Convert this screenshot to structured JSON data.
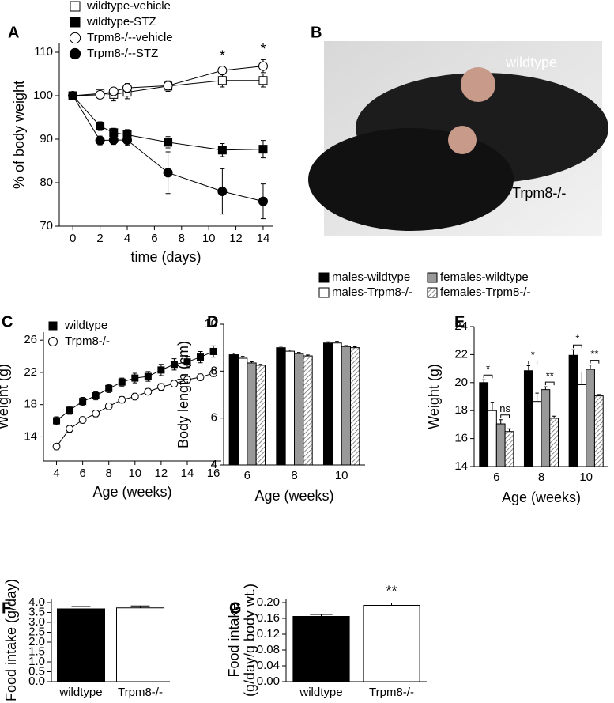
{
  "chart_data": [
    {
      "type": "line",
      "panel": "A",
      "xlabel": "time (days)",
      "ylabel": "% of body weight",
      "x": [
        0,
        2,
        3,
        4,
        7,
        11,
        14
      ],
      "xlim": [
        -1,
        14.7
      ],
      "xticks": [
        0,
        2,
        4,
        6,
        8,
        10,
        12,
        14
      ],
      "ylim": [
        70,
        112
      ],
      "yticks": [
        70,
        80,
        90,
        100,
        110
      ],
      "legend": "top-left",
      "series": [
        {
          "name": "wildtype-vehicle",
          "color": "#000000",
          "marker": "square",
          "filled": false,
          "values": [
            100,
            100.5,
            100.3,
            100.8,
            102.2,
            103.5,
            103.5
          ],
          "errors": [
            0.5,
            1,
            1.5,
            1.5,
            1.2,
            1.5,
            1.5
          ]
        },
        {
          "name": "wildtype-STZ",
          "color": "#000000",
          "marker": "square",
          "filled": true,
          "values": [
            100,
            93,
            91.5,
            91,
            89.3,
            87.5,
            87.7
          ],
          "errors": [
            0.5,
            1,
            1,
            1.2,
            1.3,
            1.5,
            2
          ]
        },
        {
          "name": "Trpm8-/--vehicle",
          "color": "#000000",
          "marker": "circle",
          "filled": false,
          "values": [
            100,
            100.2,
            101,
            101.8,
            102.3,
            105.8,
            106.8
          ],
          "errors": [
            0.5,
            0.8,
            0.8,
            1,
            1,
            1,
            1.5
          ]
        },
        {
          "name": "Trpm8-/--STZ",
          "color": "#000000",
          "marker": "circle",
          "filled": true,
          "values": [
            100,
            89.7,
            89.8,
            89.8,
            82.3,
            78,
            75.7
          ],
          "errors": [
            0.5,
            1,
            1,
            1.2,
            4.8,
            5.2,
            4
          ]
        }
      ],
      "annotations": [
        null,
        null,
        null,
        null,
        null,
        "*",
        "*"
      ]
    },
    {
      "type": "image",
      "panel": "B",
      "labels": [
        "wildtype",
        "Trpm8-/-"
      ]
    },
    {
      "type": "line",
      "panel": "C",
      "xlabel": "Age (weeks)",
      "ylabel": "Weight (g)",
      "x": [
        4,
        5,
        6,
        7,
        8,
        9,
        10,
        11,
        12,
        13,
        14,
        15,
        16
      ],
      "xlim": [
        3,
        16.6
      ],
      "xticks": [
        4,
        6,
        8,
        10,
        12,
        14,
        16
      ],
      "ylim": [
        11,
        27
      ],
      "yticks": [
        14,
        18,
        22,
        26
      ],
      "legend": "top-left",
      "series": [
        {
          "name": "wildtype",
          "color": "#000000",
          "marker": "square",
          "filled": true,
          "values": [
            16,
            17.3,
            18.4,
            19.1,
            20,
            20.8,
            21.3,
            21.5,
            22.3,
            23,
            23.3,
            23.9,
            24.6
          ],
          "errors": [
            0.5,
            0.5,
            0.5,
            0.5,
            0.5,
            0.5,
            0.6,
            0.6,
            0.7,
            0.7,
            0.7,
            0.7,
            0.7
          ]
        },
        {
          "name": "Trpm8-/-",
          "color": "#000000",
          "marker": "circle",
          "filled": false,
          "values": [
            12.8,
            15,
            16.1,
            16.9,
            17.8,
            18.6,
            19,
            19.6,
            20.2,
            20.6,
            21.1,
            21.4,
            21.9
          ],
          "errors": [
            0.4,
            0.4,
            0.4,
            0.4,
            0.4,
            0.4,
            0.4,
            0.4,
            0.4,
            0.4,
            0.4,
            0.4,
            0.4
          ]
        }
      ]
    },
    {
      "type": "bar",
      "panel": "D",
      "xlabel": "Age (weeks)",
      "ylabel": "Body length (cm)",
      "categories": [
        "6",
        "8",
        "10"
      ],
      "ylim": [
        4,
        10
      ],
      "yticks": [
        4,
        6,
        8,
        10
      ],
      "legend": "top",
      "series": [
        {
          "name": "males-wildtype",
          "color": "#000000",
          "values": [
            8.7,
            9.0,
            9.2
          ],
          "errors": [
            0.06,
            0.06,
            0.05
          ]
        },
        {
          "name": "males-Trpm8-/-",
          "color": "#ffffff",
          "values": [
            8.55,
            8.85,
            9.2
          ],
          "errors": [
            0.08,
            0.05,
            0.07
          ]
        },
        {
          "name": "females-wildtype",
          "color": "#999999",
          "values": [
            8.35,
            8.75,
            9.05
          ],
          "errors": [
            0.05,
            0.05,
            0.04
          ]
        },
        {
          "name": "females-Trpm8-/-",
          "color": "hatch",
          "values": [
            8.25,
            8.65,
            9.0
          ],
          "errors": [
            0.04,
            0.04,
            0.04
          ]
        }
      ]
    },
    {
      "type": "bar",
      "panel": "E",
      "xlabel": "Age (weeks)",
      "ylabel": "Weight (g)",
      "categories": [
        "6",
        "8",
        "10"
      ],
      "ylim": [
        14,
        24
      ],
      "yticks": [
        14,
        16,
        18,
        20,
        22,
        24
      ],
      "series": [
        {
          "color": "#000000",
          "values": [
            20,
            20.85,
            21.95
          ],
          "errors": [
            0.2,
            0.35,
            0.4
          ]
        },
        {
          "color": "#ffffff",
          "values": [
            18,
            18.65,
            19.85
          ],
          "errors": [
            0.6,
            0.6,
            0.9
          ]
        },
        {
          "color": "#999999",
          "values": [
            17.05,
            19.5,
            20.95
          ],
          "errors": [
            0.3,
            0.2,
            0.3
          ]
        },
        {
          "color": "hatch",
          "values": [
            16.5,
            17.45,
            19.05
          ],
          "errors": [
            0.2,
            0.15,
            0.1
          ]
        }
      ],
      "annotations": [
        [
          "*",
          "ns"
        ],
        [
          "*",
          "**"
        ],
        [
          "*",
          "**"
        ]
      ]
    },
    {
      "type": "bar",
      "panel": "F",
      "ylabel": "Food intake (g/day)",
      "categories": [
        "wildtype",
        "Trpm8-/-"
      ],
      "ylim": [
        0,
        4.2
      ],
      "yticks": [
        {
          "value": 0,
          "label": "0.0"
        },
        0.5,
        {
          "value": 1,
          "label": "1.0"
        },
        1.5,
        {
          "value": 2,
          "label": "2.0"
        },
        2.5,
        {
          "value": 3,
          "label": "3.0"
        },
        3.5,
        {
          "value": 4,
          "label": "4.0"
        }
      ],
      "colors": [
        "#000000",
        "#ffffff"
      ],
      "values": [
        3.68,
        3.73
      ],
      "errors": [
        0.12,
        0.1
      ]
    },
    {
      "type": "bar",
      "panel": "G",
      "ylabel": [
        "Food intake",
        "(g/day/g body wt.)"
      ],
      "categories": [
        "wildtype",
        "Trpm8-/-"
      ],
      "ylim": [
        0,
        0.21
      ],
      "yticks": [
        {
          "value": 0,
          "label": "0.00"
        },
        {
          "value": 0.04,
          "label": "0.04"
        },
        {
          "value": 0.08,
          "label": "0.08"
        },
        {
          "value": 0.12,
          "label": "0.12"
        },
        {
          "value": 0.16,
          "label": "0.16"
        },
        {
          "value": 0.2,
          "label": "0.20"
        }
      ],
      "colors": [
        "#000000",
        "#ffffff"
      ],
      "values": [
        0.165,
        0.193
      ],
      "errors": [
        0.005,
        0.006
      ],
      "annotations": [
        null,
        "**"
      ]
    }
  ]
}
